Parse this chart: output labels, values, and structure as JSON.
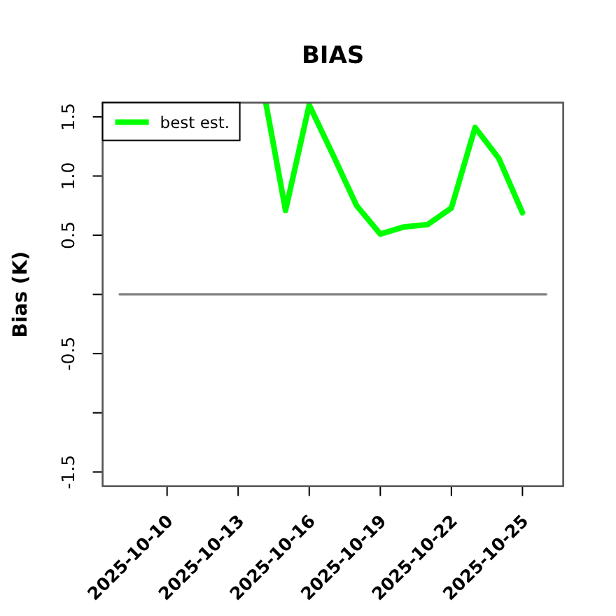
{
  "chart_data": {
    "type": "line",
    "title": "BIAS",
    "ylabel": "Bias (K)",
    "xlim": [
      "2025-10-07T06:43",
      "2025-10-26T17:17"
    ],
    "xticks": [
      "2025-10-10",
      "2025-10-13",
      "2025-10-16",
      "2025-10-19",
      "2025-10-22",
      "2025-10-25"
    ],
    "ylim": [
      -1.62,
      1.62
    ],
    "yticks": [
      1.5,
      {
        "value": 1,
        "label": "1.0"
      },
      0.5,
      {
        "value": 0,
        "label": null
      },
      -0.5,
      {
        "value": -1,
        "label": null
      },
      -1.5
    ],
    "legend": "top left",
    "series": [
      {
        "name": "best est.",
        "color": "#00ff00",
        "x": [
          "2025-10-14T04:00",
          "2025-10-15",
          "2025-10-16",
          "2025-10-17",
          "2025-10-18",
          "2025-10-19",
          "2025-10-20",
          "2025-10-21",
          "2025-10-22",
          "2025-10-23",
          "2025-10-24",
          "2025-10-25"
        ],
        "values": [
          1.62,
          0.71,
          1.6,
          1.18,
          0.75,
          0.51,
          0.57,
          0.59,
          0.73,
          1.41,
          1.15,
          0.69
        ]
      },
      {
        "color": "#808080",
        "x": [
          "2025-10-08",
          "2025-10-26"
        ],
        "values": [
          0,
          0
        ]
      }
    ]
  }
}
